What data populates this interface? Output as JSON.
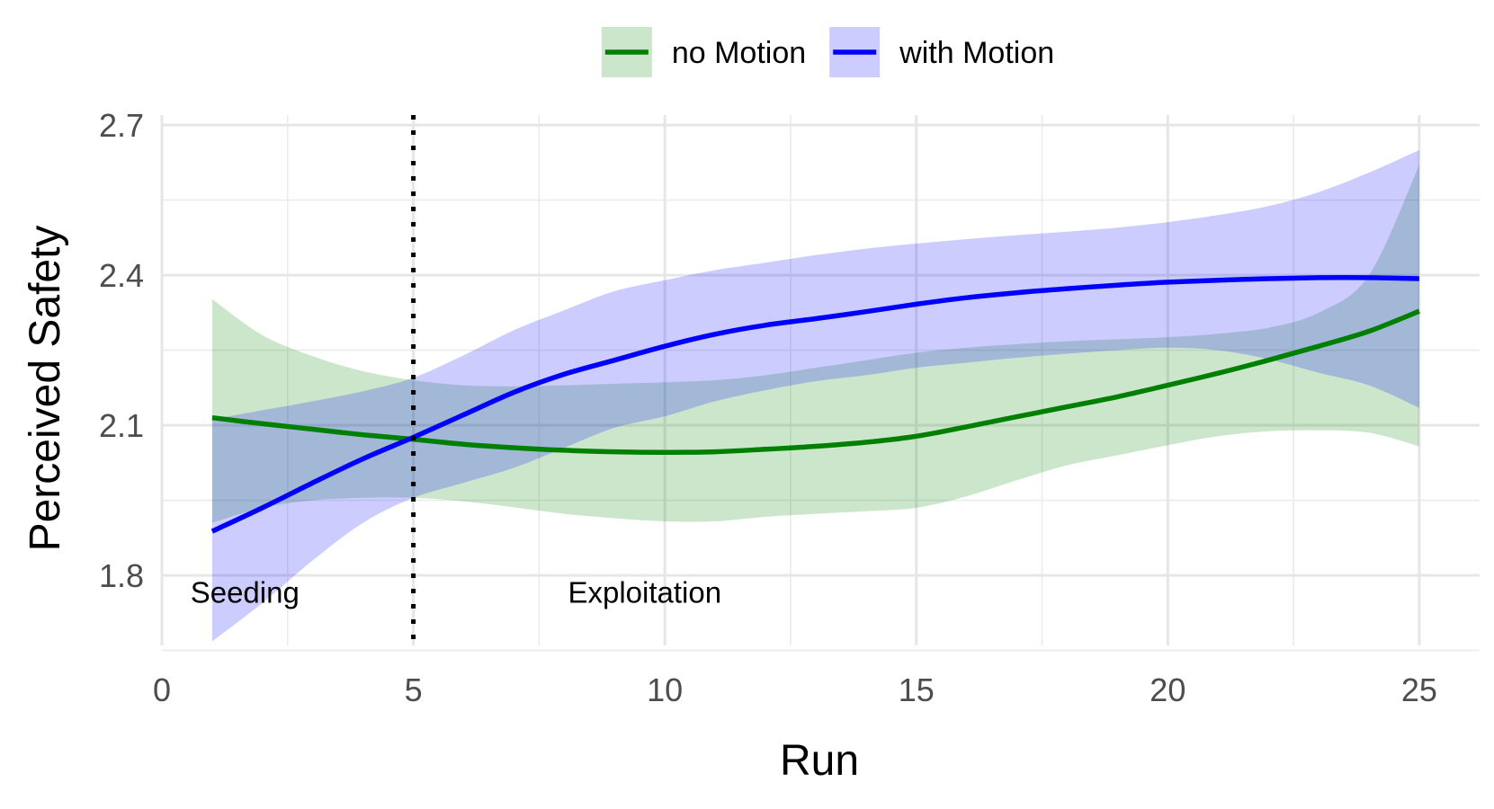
{
  "chart_data": {
    "type": "line",
    "xlabel": "Run",
    "ylabel": "Perceived Safety",
    "xlim": [
      0,
      26.2
    ],
    "ylim": [
      1.66,
      2.72
    ],
    "x_ticks": [
      0,
      5,
      10,
      15,
      20,
      25
    ],
    "y_ticks": [
      1.8,
      2.1,
      2.4,
      2.7
    ],
    "x_tick_labels": [
      "0",
      "5",
      "10",
      "15",
      "20",
      "25"
    ],
    "y_tick_labels": [
      "1.8",
      "2.1",
      "2.4",
      "2.7"
    ],
    "x_minor_ticks": [
      2.5,
      7.5,
      12.5,
      17.5,
      22.5
    ],
    "y_minor_ticks": [
      1.65,
      1.95,
      2.25,
      2.55
    ],
    "grid": true,
    "legend_position": "top",
    "vline": {
      "x": 5,
      "style": "dotted",
      "color": "#000000"
    },
    "annotations": [
      {
        "text": "Seeding",
        "x": 1.65,
        "y": 1.745
      },
      {
        "text": "Exploitation",
        "x": 9.6,
        "y": 1.745
      }
    ],
    "x": [
      1,
      2,
      3,
      4,
      5,
      6,
      7,
      8,
      9,
      10,
      11,
      12,
      13,
      14,
      15,
      16,
      17,
      18,
      19,
      20,
      21,
      22,
      23,
      24,
      25
    ],
    "series": [
      {
        "name": "no Motion",
        "color": "#008000",
        "band_color": "#cce6cc",
        "values": [
          2.115,
          2.103,
          2.092,
          2.081,
          2.072,
          2.062,
          2.055,
          2.05,
          2.047,
          2.046,
          2.047,
          2.052,
          2.058,
          2.066,
          2.078,
          2.097,
          2.117,
          2.137,
          2.157,
          2.18,
          2.204,
          2.23,
          2.258,
          2.288,
          2.328
        ],
        "lower": [
          1.905,
          1.935,
          1.95,
          1.955,
          1.955,
          1.948,
          1.936,
          1.923,
          1.914,
          1.908,
          1.908,
          1.917,
          1.923,
          1.928,
          1.935,
          1.958,
          1.99,
          2.02,
          2.04,
          2.06,
          2.078,
          2.088,
          2.09,
          2.085,
          2.058
        ],
        "upper": [
          2.352,
          2.28,
          2.238,
          2.208,
          2.19,
          2.18,
          2.178,
          2.18,
          2.183,
          2.186,
          2.19,
          2.2,
          2.215,
          2.23,
          2.245,
          2.255,
          2.262,
          2.268,
          2.272,
          2.276,
          2.283,
          2.295,
          2.325,
          2.4,
          2.62
        ]
      },
      {
        "name": "with Motion",
        "color": "#0000ff",
        "band_color": "#ccccff",
        "values": [
          1.888,
          1.935,
          1.985,
          2.033,
          2.076,
          2.121,
          2.166,
          2.202,
          2.23,
          2.258,
          2.282,
          2.3,
          2.313,
          2.327,
          2.342,
          2.355,
          2.365,
          2.373,
          2.38,
          2.386,
          2.39,
          2.393,
          2.395,
          2.395,
          2.393
        ],
        "lower": [
          1.668,
          1.745,
          1.83,
          1.905,
          1.955,
          1.985,
          2.015,
          2.055,
          2.095,
          2.118,
          2.148,
          2.17,
          2.188,
          2.2,
          2.215,
          2.225,
          2.235,
          2.243,
          2.25,
          2.255,
          2.25,
          2.232,
          2.205,
          2.18,
          2.135
        ],
        "upper": [
          2.112,
          2.13,
          2.148,
          2.168,
          2.195,
          2.24,
          2.29,
          2.33,
          2.368,
          2.39,
          2.41,
          2.425,
          2.44,
          2.453,
          2.463,
          2.472,
          2.48,
          2.487,
          2.495,
          2.506,
          2.52,
          2.538,
          2.566,
          2.605,
          2.65
        ]
      }
    ]
  }
}
